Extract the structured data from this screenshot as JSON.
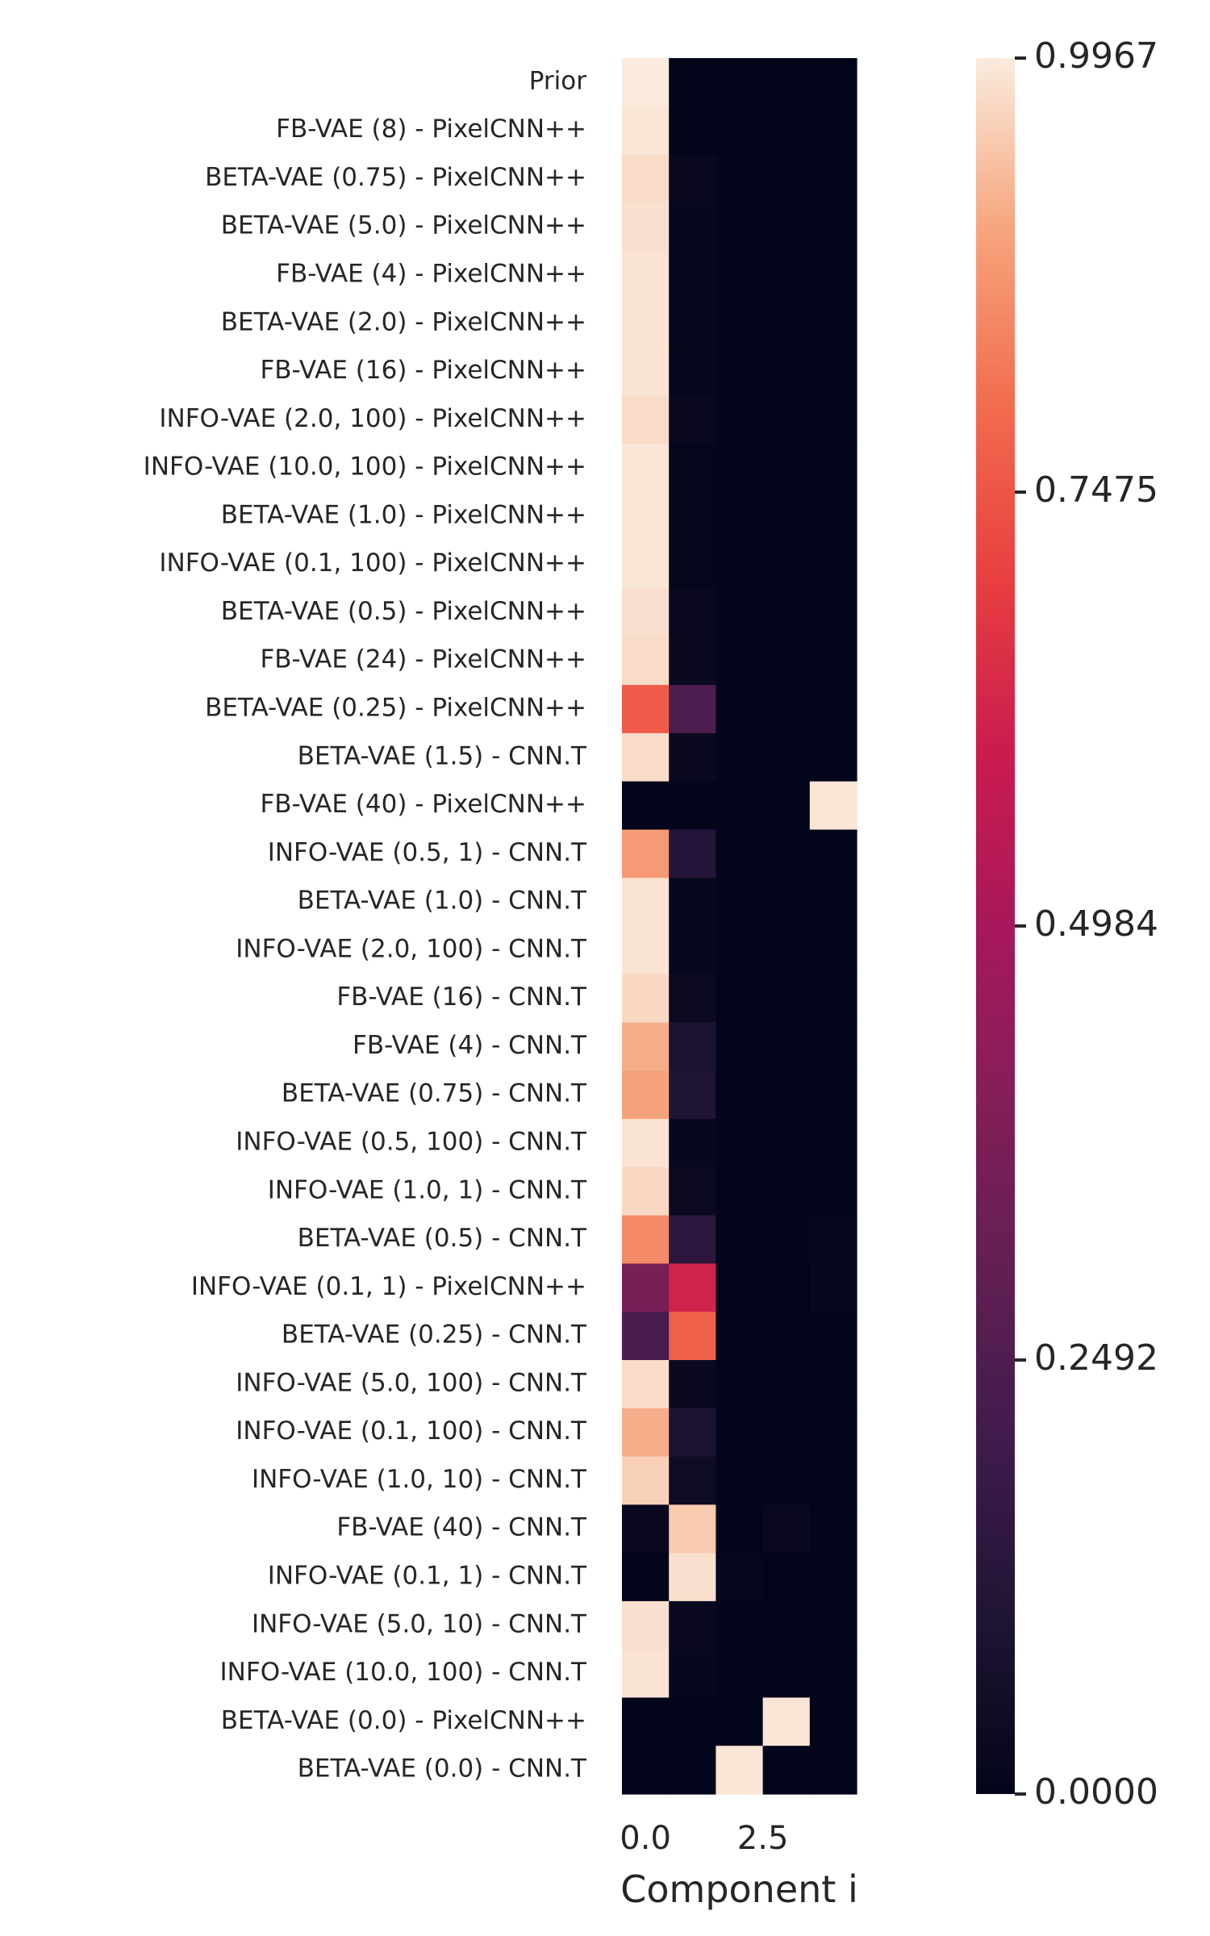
{
  "chart_data": {
    "type": "heatmap",
    "title": "",
    "xlabel": "Component i",
    "ylabel": "",
    "x_tick_labels": [
      "0.0",
      "2.5"
    ],
    "x_tick_values": [
      0.0,
      2.5
    ],
    "columns": 5,
    "rows": [
      "Prior",
      "FB-VAE (8) - PixelCNN++",
      "BETA-VAE (0.75) - PixelCNN++",
      "BETA-VAE (5.0) - PixelCNN++",
      "FB-VAE (4) - PixelCNN++",
      "BETA-VAE (2.0) - PixelCNN++",
      "FB-VAE (16) - PixelCNN++",
      "INFO-VAE (2.0, 100) - PixelCNN++",
      "INFO-VAE (10.0, 100) - PixelCNN++",
      "BETA-VAE (1.0) - PixelCNN++",
      "INFO-VAE (0.1, 100) - PixelCNN++",
      "BETA-VAE (0.5) - PixelCNN++",
      "FB-VAE (24) - PixelCNN++",
      "BETA-VAE (0.25) - PixelCNN++",
      "BETA-VAE (1.5) - CNN.T",
      "FB-VAE (40) - PixelCNN++",
      "INFO-VAE (0.5, 1) - CNN.T",
      "BETA-VAE (1.0) - CNN.T",
      "INFO-VAE (2.0, 100) - CNN.T",
      "FB-VAE (16) - CNN.T",
      "FB-VAE (4) - CNN.T",
      "BETA-VAE (0.75) - CNN.T",
      "INFO-VAE (0.5, 100) - CNN.T",
      "INFO-VAE (1.0, 1) - CNN.T",
      "BETA-VAE (0.5) - CNN.T",
      "INFO-VAE (0.1, 1) - PixelCNN++",
      "BETA-VAE (0.25) - CNN.T",
      "INFO-VAE (5.0, 100) - CNN.T",
      "INFO-VAE (0.1, 100) - CNN.T",
      "INFO-VAE (1.0, 10) - CNN.T",
      "FB-VAE (40) - CNN.T",
      "INFO-VAE (0.1, 1) - CNN.T",
      "INFO-VAE (5.0, 10) - CNN.T",
      "INFO-VAE (10.0, 100) - CNN.T",
      "BETA-VAE (0.0) - PixelCNN++",
      "BETA-VAE (0.0) - CNN.T"
    ],
    "values": [
      [
        0.9967,
        0.0,
        0.0,
        0.0,
        0.0
      ],
      [
        0.99,
        0.0,
        0.0,
        0.0,
        0.0
      ],
      [
        0.975,
        0.02,
        0.0,
        0.0,
        0.0
      ],
      [
        0.98,
        0.015,
        0.0,
        0.0,
        0.0
      ],
      [
        0.985,
        0.01,
        0.0,
        0.0,
        0.0
      ],
      [
        0.985,
        0.01,
        0.0,
        0.0,
        0.0
      ],
      [
        0.985,
        0.01,
        0.0,
        0.0,
        0.0
      ],
      [
        0.975,
        0.02,
        0.0,
        0.0,
        0.0
      ],
      [
        0.99,
        0.005,
        0.0,
        0.0,
        0.0
      ],
      [
        0.99,
        0.005,
        0.0,
        0.0,
        0.0
      ],
      [
        0.99,
        0.005,
        0.0,
        0.0,
        0.0
      ],
      [
        0.98,
        0.02,
        0.0,
        0.0,
        0.0
      ],
      [
        0.975,
        0.025,
        0.0,
        0.0,
        0.0
      ],
      [
        0.76,
        0.24,
        0.0,
        0.0,
        0.0
      ],
      [
        0.975,
        0.025,
        0.0,
        0.0,
        0.0
      ],
      [
        0.0,
        0.0,
        0.0,
        0.0,
        0.99
      ],
      [
        0.88,
        0.12,
        0.0,
        0.0,
        0.0
      ],
      [
        0.985,
        0.015,
        0.0,
        0.0,
        0.0
      ],
      [
        0.985,
        0.015,
        0.0,
        0.0,
        0.0
      ],
      [
        0.97,
        0.03,
        0.0,
        0.0,
        0.0
      ],
      [
        0.91,
        0.09,
        0.0,
        0.0,
        0.0
      ],
      [
        0.895,
        0.1,
        0.0,
        0.0,
        0.0
      ],
      [
        0.985,
        0.015,
        0.0,
        0.0,
        0.0
      ],
      [
        0.97,
        0.03,
        0.0,
        0.0,
        0.0
      ],
      [
        0.85,
        0.14,
        0.0,
        0.0,
        0.01
      ],
      [
        0.37,
        0.62,
        0.0,
        0.0,
        0.015
      ],
      [
        0.23,
        0.77,
        0.0,
        0.0,
        0.0
      ],
      [
        0.975,
        0.025,
        0.0,
        0.0,
        0.0
      ],
      [
        0.91,
        0.09,
        0.0,
        0.0,
        0.0
      ],
      [
        0.96,
        0.04,
        0.0,
        0.0,
        0.0
      ],
      [
        0.02,
        0.95,
        0.0,
        0.02,
        0.0
      ],
      [
        0.0,
        0.98,
        0.01,
        0.0,
        0.0
      ],
      [
        0.98,
        0.02,
        0.0,
        0.0,
        0.0
      ],
      [
        0.985,
        0.015,
        0.0,
        0.0,
        0.0
      ],
      [
        0.0,
        0.0,
        0.0,
        0.99,
        0.0
      ],
      [
        0.0,
        0.0,
        0.99,
        0.0,
        0.0
      ]
    ],
    "colormap": "rocket",
    "colorbar": {
      "min": 0.0,
      "max": 0.9967,
      "tick_labels": [
        "0.0000",
        "0.2492",
        "0.4984",
        "0.7475",
        "0.9967"
      ],
      "tick_values": [
        0.0,
        0.2492,
        0.4984,
        0.7475,
        0.9967
      ]
    },
    "grid": false
  }
}
